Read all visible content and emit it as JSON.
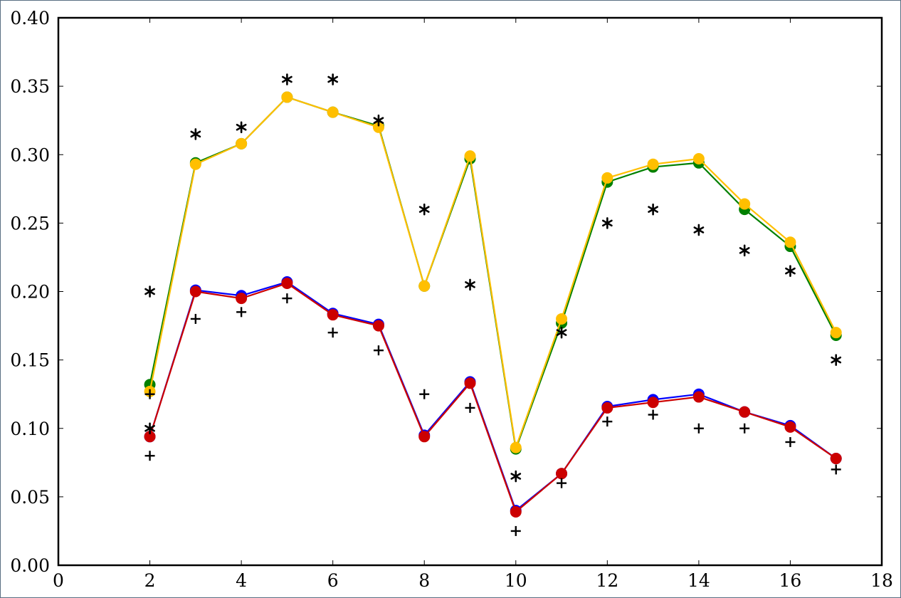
{
  "chart_data": {
    "type": "line",
    "title": "",
    "xlabel": "",
    "ylabel": "",
    "xlim": [
      0,
      18
    ],
    "ylim": [
      0,
      0.4
    ],
    "x_ticks": [
      0,
      2,
      4,
      6,
      8,
      10,
      12,
      14,
      16,
      18
    ],
    "y_ticks": [
      0.0,
      0.05,
      0.1,
      0.15,
      0.2,
      0.25,
      0.3,
      0.35,
      0.4
    ],
    "x_tick_labels": [
      "0",
      "2",
      "4",
      "6",
      "8",
      "10",
      "12",
      "14",
      "16",
      "18"
    ],
    "y_tick_labels": [
      "0.00",
      "0.05",
      "0.10",
      "0.15",
      "0.20",
      "0.25",
      "0.30",
      "0.35",
      "0.40"
    ],
    "x": [
      2,
      3,
      4,
      5,
      6,
      7,
      8,
      9,
      10,
      11,
      12,
      13,
      14,
      15,
      16,
      17
    ],
    "series": [
      {
        "color": "#008000",
        "marker": "circle",
        "line": true,
        "values": [
          0.132,
          0.294,
          0.308,
          0.342,
          0.331,
          0.321,
          0.204,
          0.297,
          0.085,
          0.177,
          0.28,
          0.291,
          0.294,
          0.26,
          0.233,
          0.168
        ]
      },
      {
        "color": "#ffbf00",
        "marker": "circle",
        "line": true,
        "values": [
          0.127,
          0.293,
          0.308,
          0.342,
          0.331,
          0.32,
          0.204,
          0.299,
          0.086,
          0.18,
          0.283,
          0.293,
          0.297,
          0.264,
          0.236,
          0.17
        ]
      },
      {
        "color": "#0000ff",
        "marker": "circle",
        "line": true,
        "values": [
          0.094,
          0.201,
          0.197,
          0.207,
          0.184,
          0.176,
          0.095,
          0.134,
          0.04,
          0.067,
          0.116,
          0.121,
          0.125,
          0.112,
          0.102,
          0.078
        ]
      },
      {
        "color": "#cc0000",
        "marker": "circle",
        "line": true,
        "values": [
          0.094,
          0.2,
          0.195,
          0.206,
          0.183,
          0.175,
          0.094,
          0.133,
          0.039,
          0.067,
          0.115,
          0.119,
          0.123,
          0.112,
          0.101,
          0.078
        ]
      },
      {
        "color": "#000000",
        "marker": "asterisk",
        "line": false,
        "values": [
          0.2,
          0.315,
          0.32,
          0.355,
          0.355,
          0.325,
          0.26,
          0.205,
          0.065,
          0.17,
          0.25,
          0.26,
          0.245,
          0.23,
          0.215,
          0.15
        ]
      },
      {
        "color": "#000000",
        "marker": "asterisk",
        "line": false,
        "points": [
          [
            2,
            0.1
          ]
        ]
      },
      {
        "color": "#000000",
        "marker": "plus",
        "line": false,
        "values": [
          0.08,
          0.18,
          0.185,
          0.195,
          0.17,
          0.157,
          0.125,
          0.115,
          0.025,
          0.06,
          0.105,
          0.11,
          0.1,
          0.1,
          0.09,
          0.07
        ]
      },
      {
        "color": "#000000",
        "marker": "plus",
        "line": false,
        "points": [
          [
            2,
            0.125
          ]
        ]
      }
    ],
    "grid": false,
    "legend": "none"
  }
}
